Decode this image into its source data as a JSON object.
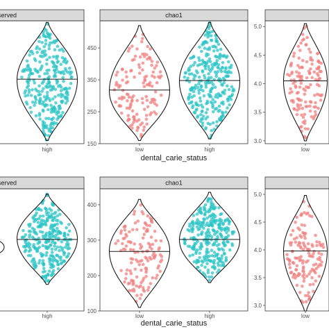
{
  "colors": {
    "low": "#F08080",
    "high": "#2EC4C6",
    "strip_fill": "#d9d9d9"
  },
  "chart_data": [
    {
      "type": "violin",
      "row": 0,
      "col": 0,
      "strip": "-served",
      "xlabel": "",
      "ylim": [
        150,
        535
      ],
      "yticks": [],
      "groups": [
        {
          "category": "high",
          "color": "high",
          "min": 160,
          "max": 530,
          "mode": 350,
          "median": 352,
          "n": 300
        }
      ]
    },
    {
      "type": "violin",
      "row": 0,
      "col": 1,
      "strip": "chao1",
      "xlabel": "dental_carie_status",
      "ylim": [
        150,
        535
      ],
      "yticks": [
        "150",
        "250",
        "350",
        "450"
      ],
      "groups": [
        {
          "category": "low",
          "color": "low",
          "min": 160,
          "max": 520,
          "mode": 315,
          "median": 318,
          "n": 140
        },
        {
          "category": "high",
          "color": "high",
          "min": 165,
          "max": 530,
          "mode": 345,
          "median": 348,
          "n": 300
        }
      ]
    },
    {
      "type": "violin",
      "row": 0,
      "col": 2,
      "strip": "",
      "xlabel": "",
      "ylim": [
        2.95,
        5.1
      ],
      "yticks": [
        "3.0",
        "3.5",
        "4.0",
        "4.5",
        "5.0"
      ],
      "groups": [
        {
          "category": "low",
          "color": "low",
          "min": 3.0,
          "max": 5.05,
          "mode": 4.05,
          "median": 4.05,
          "n": 140
        }
      ]
    },
    {
      "type": "violin",
      "row": 1,
      "col": 0,
      "strip": "-served",
      "xlabel": "",
      "ylim": [
        100,
        445
      ],
      "yticks": [],
      "groups": [
        {
          "category": "high",
          "color": "high",
          "min": 175,
          "max": 430,
          "mode": 305,
          "median": 302,
          "n": 300
        }
      ]
    },
    {
      "type": "violin",
      "row": 1,
      "col": 1,
      "strip": "chao1",
      "xlabel": "dental_carie_status",
      "ylim": [
        100,
        445
      ],
      "yticks": [
        "100",
        "200",
        "300",
        "400"
      ],
      "groups": [
        {
          "category": "low",
          "color": "low",
          "min": 110,
          "max": 415,
          "mode": 270,
          "median": 268,
          "n": 140
        },
        {
          "category": "high",
          "color": "high",
          "min": 180,
          "max": 435,
          "mode": 300,
          "median": 302,
          "n": 300
        }
      ]
    },
    {
      "type": "violin",
      "row": 1,
      "col": 2,
      "strip": "",
      "xlabel": "",
      "ylim": [
        2.9,
        5.1
      ],
      "yticks": [
        "3.0",
        "3.5",
        "4.0",
        "4.5",
        "5.0"
      ],
      "groups": [
        {
          "category": "low",
          "color": "low",
          "min": 2.9,
          "max": 4.98,
          "mode": 3.98,
          "median": 3.98,
          "n": 140
        }
      ]
    }
  ]
}
